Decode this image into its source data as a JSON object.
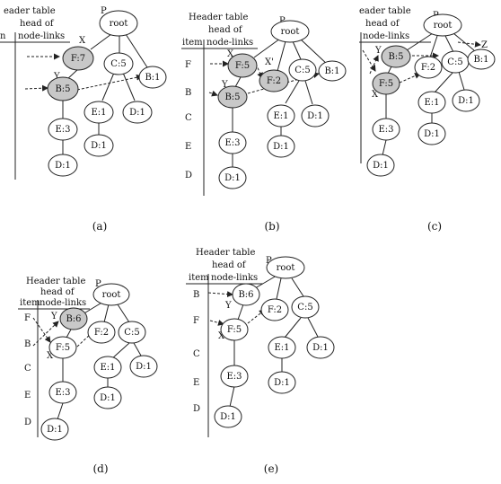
{
  "header": {
    "header_table": "Header table",
    "header_table_clipped": "eader table",
    "head_of": "head of",
    "node_links": "node-links",
    "node_links_clipped": "node-links",
    "item": "item",
    "item_clipped": "n"
  },
  "labels": {
    "p": "P",
    "x": "X",
    "x_prime": "X'",
    "y": "Y",
    "z": "Z"
  },
  "nodes": {
    "root": "root",
    "f7": "F:7",
    "b5": "B:5",
    "b6": "B:6",
    "f5": "F:5",
    "f2": "F:2",
    "c5": "C:5",
    "b1": "B:1",
    "e3": "E:3",
    "e1": "E:1",
    "d1": "D:1"
  },
  "items": {
    "f": "F",
    "b": "B",
    "c": "C",
    "e": "E",
    "d": "D"
  },
  "captions": {
    "a": "(a)",
    "b": "(b)",
    "c": "(c)",
    "d": "(d)",
    "e": "(e)"
  },
  "colors": {
    "highlight_fill": "#c8c8c8",
    "node_fill": "#ffffff",
    "line": "#222222"
  }
}
